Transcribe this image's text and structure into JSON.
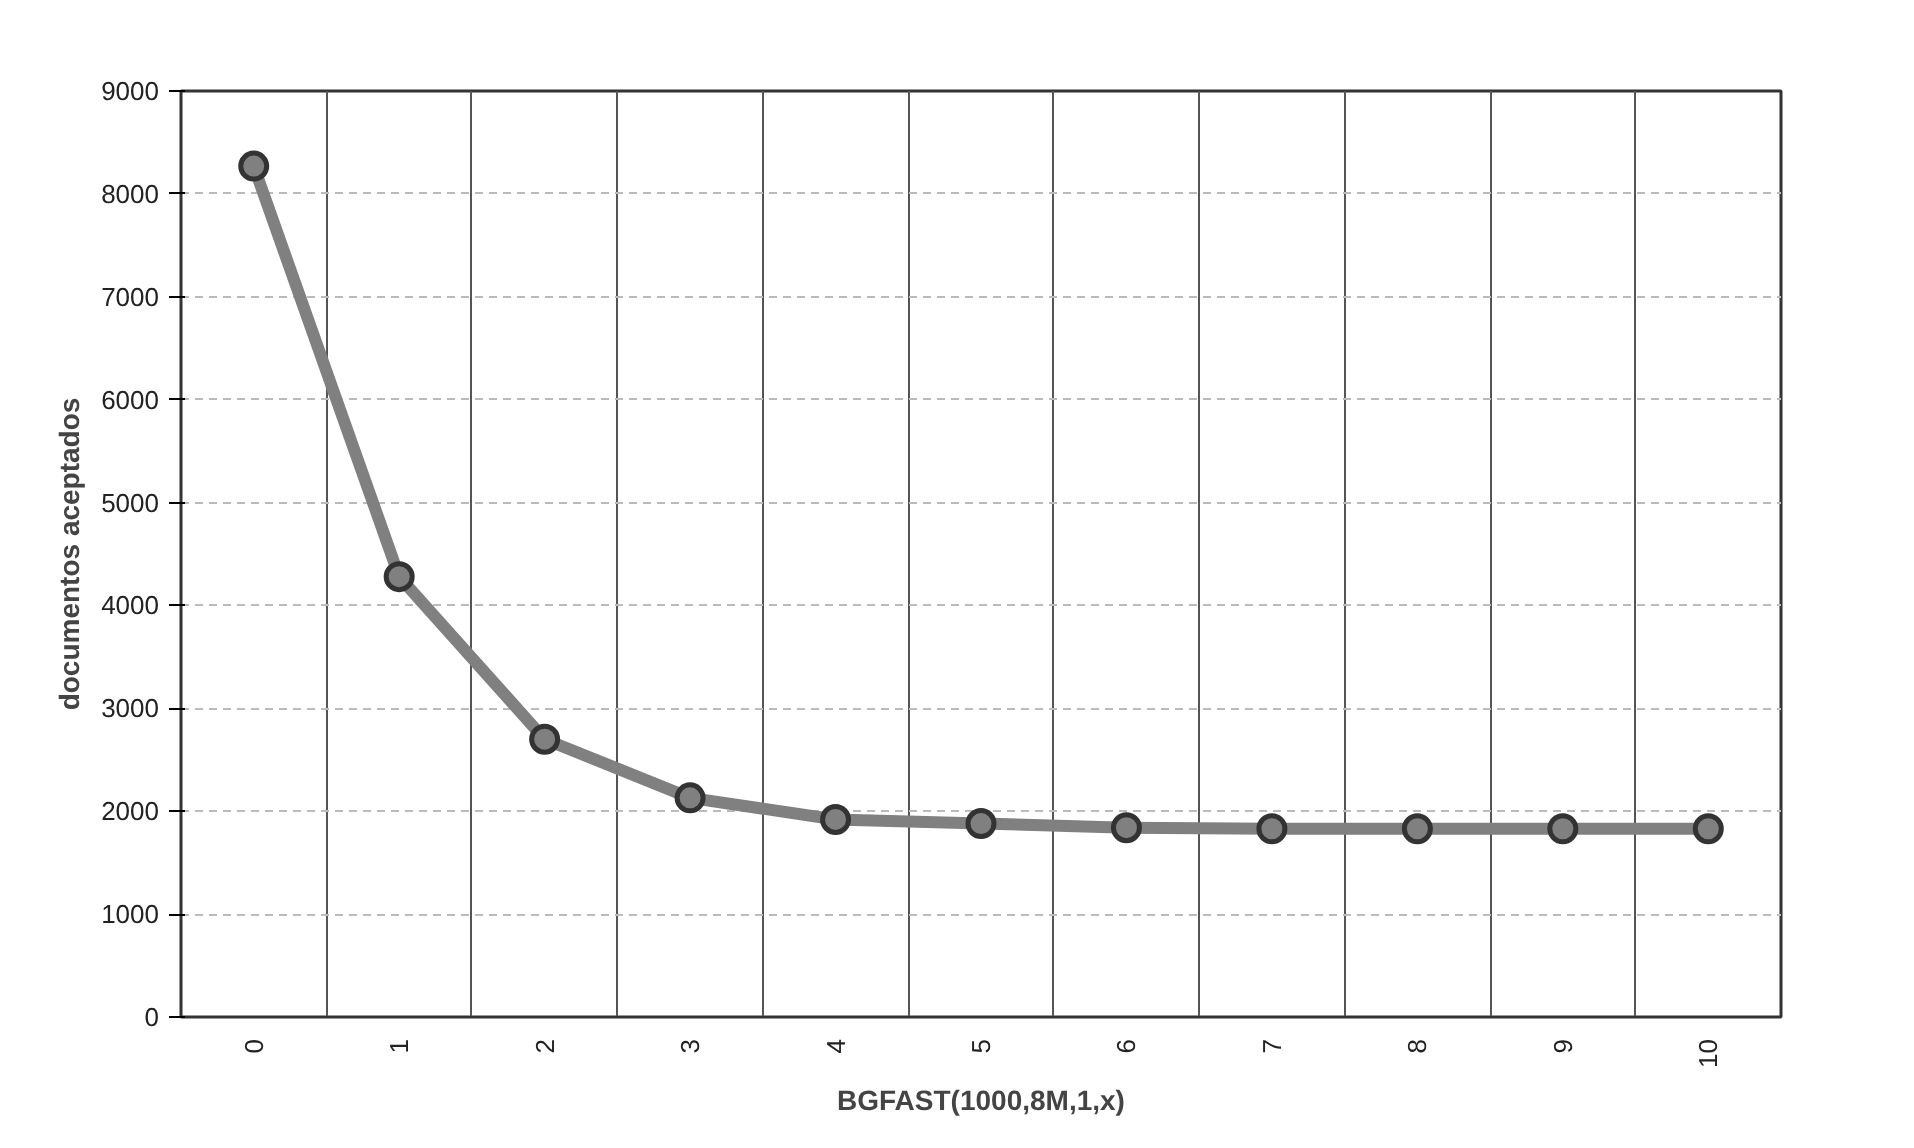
{
  "chart_data": {
    "type": "line",
    "xlabel": "BGFAST(1000,8M,1,x)",
    "ylabel": "documentos aceptados",
    "categories": [
      "0",
      "1",
      "2",
      "3",
      "4",
      "5",
      "6",
      "7",
      "8",
      "9",
      "10"
    ],
    "series": [
      {
        "color": "#808080",
        "values": [
          8270,
          4280,
          2700,
          2130,
          1920,
          1880,
          1840,
          1830,
          1830,
          1830,
          1830
        ]
      }
    ],
    "ylim": [
      0,
      9000
    ],
    "yticks": [
      0,
      1000,
      2000,
      3000,
      4000,
      5000,
      6000,
      7000,
      8000,
      9000
    ],
    "grid": true,
    "marker": "circle",
    "line_style": "solid"
  }
}
